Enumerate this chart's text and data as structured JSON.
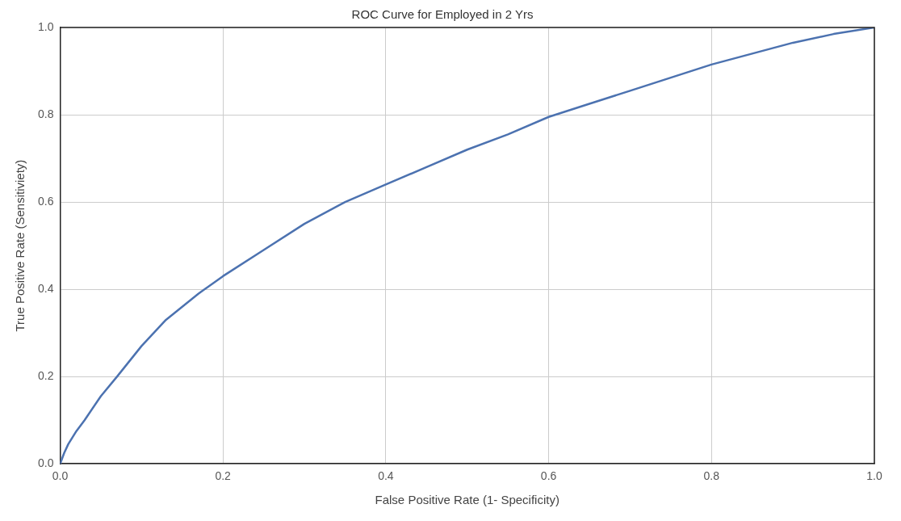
{
  "chart_data": {
    "type": "line",
    "title": "ROC Curve for Employed in 2 Yrs",
    "xlabel": "False Positive Rate (1- Specificity)",
    "ylabel": "True Positive Rate (Sensitiviety)",
    "x": [
      0,
      0.005,
      0.01,
      0.02,
      0.03,
      0.05,
      0.07,
      0.1,
      0.13,
      0.17,
      0.2,
      0.25,
      0.3,
      0.35,
      0.4,
      0.45,
      0.5,
      0.55,
      0.6,
      0.65,
      0.7,
      0.75,
      0.8,
      0.85,
      0.9,
      0.95,
      1.0
    ],
    "series": [
      {
        "color": "#4c72b0",
        "values": [
          0,
          0.025,
          0.045,
          0.075,
          0.1,
          0.155,
          0.2,
          0.27,
          0.33,
          0.39,
          0.43,
          0.49,
          0.55,
          0.6,
          0.64,
          0.68,
          0.72,
          0.755,
          0.795,
          0.825,
          0.855,
          0.885,
          0.915,
          0.94,
          0.965,
          0.985,
          1.0
        ]
      }
    ],
    "xlim": [
      0,
      1
    ],
    "ylim": [
      0,
      1
    ],
    "xticks": [
      {
        "value": 0,
        "label": "0.0"
      },
      {
        "value": 0.2,
        "label": "0.2"
      },
      {
        "value": 0.4,
        "label": "0.4"
      },
      {
        "value": 0.6,
        "label": "0.6"
      },
      {
        "value": 0.8,
        "label": "0.8"
      },
      {
        "value": 1,
        "label": "1.0"
      }
    ],
    "yticks": [
      {
        "value": 0,
        "label": "0.0"
      },
      {
        "value": 0.2,
        "label": "0.2"
      },
      {
        "value": 0.4,
        "label": "0.4"
      },
      {
        "value": 0.6,
        "label": "0.6"
      },
      {
        "value": 0.8,
        "label": "0.8"
      },
      {
        "value": 1,
        "label": "1.0"
      }
    ],
    "grid": true,
    "legend": false,
    "marker": "none",
    "line_style": "solid"
  }
}
